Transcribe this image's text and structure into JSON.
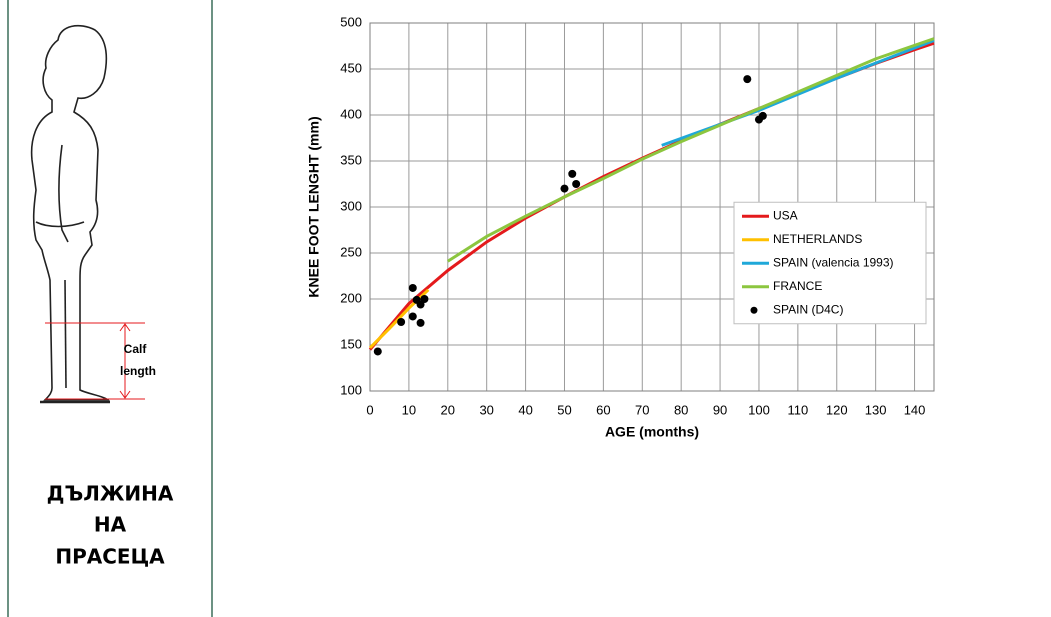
{
  "sidebar": {
    "calf_label": [
      "Calf",
      "length"
    ],
    "title": [
      "ДЪЛЖИНА",
      "НА",
      "ПРАСЕЦА"
    ]
  },
  "chart_data": {
    "type": "line",
    "x_label": "AGE (months)",
    "y_label": "KNEE FOOT LENGHT (mm)",
    "xlim": [
      0,
      145
    ],
    "xticks": [
      0,
      10,
      20,
      30,
      40,
      50,
      60,
      70,
      80,
      90,
      100,
      110,
      120,
      130,
      140
    ],
    "ylim": [
      100,
      500
    ],
    "yticks": [
      100,
      150,
      200,
      250,
      300,
      350,
      400,
      450,
      500
    ],
    "grid": true,
    "legend": "right",
    "series": [
      {
        "name": "USA",
        "color": "#e41a1c",
        "kind": "line",
        "x": [
          0,
          10,
          20,
          30,
          40,
          50,
          60,
          70,
          80,
          90,
          100,
          110,
          120,
          130,
          140,
          145
        ],
        "values": [
          145,
          195,
          231,
          262,
          288,
          311,
          333,
          353,
          372,
          390,
          407,
          424,
          440,
          456,
          471,
          478
        ]
      },
      {
        "name": "NETHERLANDS",
        "color": "#ffc000",
        "kind": "line",
        "x": [
          0,
          5,
          10,
          15
        ],
        "values": [
          147,
          168,
          190,
          210
        ]
      },
      {
        "name": "SPAIN (valencia 1993)",
        "color": "#1fa8d9",
        "kind": "line",
        "x": [
          75,
          100,
          120,
          145
        ],
        "values": [
          367,
          405,
          440,
          481
        ]
      },
      {
        "name": "FRANCE",
        "color": "#8cc63f",
        "kind": "line",
        "x": [
          20,
          30,
          40,
          50,
          60,
          70,
          80,
          90,
          100,
          110,
          120,
          130,
          145
        ],
        "values": [
          241,
          268,
          290,
          311,
          331,
          352,
          371,
          389,
          407,
          425,
          443,
          461,
          483
        ]
      },
      {
        "name": "SPAIN (D4C)",
        "color": "#000000",
        "kind": "scatter",
        "x": [
          2,
          8,
          11,
          11,
          12,
          13,
          13,
          14,
          50,
          52,
          53,
          97,
          100,
          101
        ],
        "values": [
          143,
          175,
          212,
          181,
          199,
          194,
          174,
          200,
          320,
          336,
          325,
          439,
          395,
          399
        ]
      }
    ]
  }
}
